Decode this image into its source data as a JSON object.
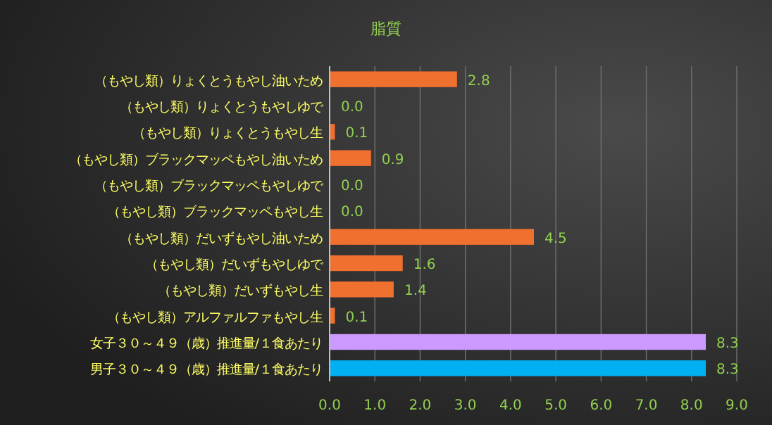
{
  "chart_data": {
    "type": "bar",
    "orientation": "horizontal",
    "title": "脂質",
    "categories": [
      "（もやし類）りょくとうもやし油いため",
      "（もやし類）りょくとうもやしゆで",
      "（もやし類）りょくとうもやし生",
      "（もやし類）ブラックマッペもやし油いため",
      "（もやし類）ブラックマッペもやしゆで",
      "（もやし類）ブラックマッペもやし生",
      "（もやし類）だいずもやし油いため",
      "（もやし類）だいずもやしゆで",
      "（もやし類）だいずもやし生",
      "（もやし類）アルファルファもやし生",
      "女子３０～４９（歳）推進量/１食あたり",
      "男子３０～４９（歳）推進量/１食あたり"
    ],
    "values": [
      2.8,
      0,
      0.1,
      0.9,
      0,
      0,
      4.5,
      1.6,
      1.4,
      0.1,
      8.3,
      8.3
    ],
    "value_labels": [
      "2.8",
      "0.0",
      "0.1",
      "0.9",
      "0.0",
      "0.0",
      "4.5",
      "1.6",
      "1.4",
      "0.1",
      "8.3",
      "8.3"
    ],
    "colors": [
      "#f07030",
      "#f07030",
      "#f07030",
      "#f07030",
      "#f07030",
      "#f07030",
      "#f07030",
      "#f07030",
      "#f07030",
      "#f07030",
      "#cc99ff",
      "#00b0f0"
    ],
    "xlim": [
      0,
      9
    ],
    "xticks": [
      {
        "value": 0,
        "label": "0.0"
      },
      {
        "value": 1,
        "label": "1.0"
      },
      {
        "value": 2,
        "label": "2.0"
      },
      {
        "value": 3,
        "label": "3.0"
      },
      {
        "value": 4,
        "label": "4.0"
      },
      {
        "value": 5,
        "label": "5.0"
      },
      {
        "value": 6,
        "label": "6.0"
      },
      {
        "value": 7,
        "label": "7.0"
      },
      {
        "value": 8,
        "label": "8.0"
      },
      {
        "value": 9,
        "label": "9.0"
      }
    ],
    "grid": "x"
  }
}
